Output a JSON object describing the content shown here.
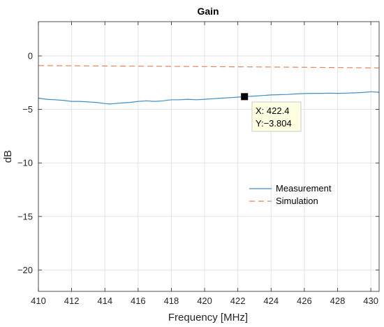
{
  "chart_data": {
    "type": "line",
    "title": "Gain",
    "xlabel": "Frequency [MHz]",
    "ylabel": "dB",
    "xlim": [
      410,
      430.5
    ],
    "ylim": [
      -22,
      3.2
    ],
    "xticks": [
      410,
      412,
      414,
      416,
      418,
      420,
      422,
      424,
      426,
      428,
      430
    ],
    "yticks": [
      0,
      -5,
      -10,
      -15,
      -20
    ],
    "ytick_labels": [
      "0",
      "−5",
      "−10",
      "−15",
      "−20"
    ],
    "grid": true,
    "legend_position": "center-right",
    "series": [
      {
        "name": "Measurement",
        "color": "#3f8fc4",
        "style": "solid",
        "x": [
          410,
          410.5,
          411,
          411.5,
          412,
          412.5,
          413,
          413.5,
          414,
          414.3,
          414.6,
          415,
          415.5,
          416,
          416.5,
          417,
          417.5,
          418,
          418.5,
          419,
          419.5,
          420,
          420.5,
          421,
          421.5,
          422,
          422.4,
          423,
          423.5,
          424,
          424.5,
          425,
          425.5,
          426,
          426.5,
          427,
          427.5,
          428,
          428.5,
          429,
          429.5,
          430,
          430.5
        ],
        "y": [
          -3.95,
          -4.05,
          -4.1,
          -4.15,
          -4.25,
          -4.25,
          -4.3,
          -4.35,
          -4.45,
          -4.5,
          -4.45,
          -4.4,
          -4.35,
          -4.25,
          -4.2,
          -4.25,
          -4.2,
          -4.1,
          -4.1,
          -4.05,
          -4.1,
          -4.05,
          -4.0,
          -3.95,
          -3.9,
          -3.85,
          -3.804,
          -3.75,
          -3.7,
          -3.65,
          -3.62,
          -3.6,
          -3.55,
          -3.52,
          -3.5,
          -3.5,
          -3.48,
          -3.5,
          -3.48,
          -3.45,
          -3.42,
          -3.35,
          -3.4
        ]
      },
      {
        "name": "Simulation",
        "color": "#e8845a",
        "style": "dashed",
        "x": [
          410,
          415,
          420,
          425,
          430.5
        ],
        "y": [
          -0.9,
          -0.95,
          -1.0,
          -1.05,
          -1.12
        ]
      }
    ],
    "datatip": {
      "x": 422.4,
      "y": -3.804,
      "x_text": "X: 422.4",
      "y_text": "Y:−3.804"
    }
  }
}
